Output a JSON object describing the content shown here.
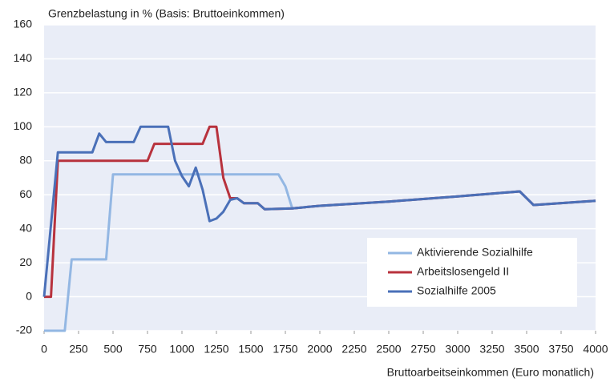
{
  "chart_data": {
    "type": "line",
    "title": "Grenzbelastung in % (Basis: Bruttoeinkommen)",
    "x_label": "Bruttoarbeitseinkommen (Euro monatlich)",
    "xlim": [
      0,
      4000
    ],
    "xticks": [
      0,
      250,
      500,
      750,
      1000,
      1250,
      1500,
      1750,
      2000,
      2250,
      2500,
      2750,
      3000,
      3250,
      3500,
      3750,
      4000
    ],
    "ylim": [
      -20,
      160
    ],
    "yticks": [
      -20,
      0,
      20,
      40,
      60,
      80,
      100,
      120,
      140,
      160
    ],
    "grid": true,
    "legend": "lower right",
    "series": [
      {
        "name": "Aktivierende Sozialhilfe",
        "color": "#93b7e3",
        "x": [
          0,
          150,
          200,
          450,
          500,
          1700,
          1750,
          1800,
          2000,
          2500,
          3000,
          3450,
          3550,
          4000
        ],
        "values": [
          -20,
          -20,
          22,
          22,
          72,
          72,
          65,
          52,
          53.5,
          56,
          59,
          62,
          54,
          56.5
        ]
      },
      {
        "name": "Arbeitslosengeld II",
        "color": "#b8323d",
        "x": [
          0,
          50,
          100,
          750,
          800,
          1150,
          1200,
          1250,
          1300,
          1350,
          1400,
          1450,
          1550,
          1600,
          1800,
          2000,
          2500,
          3000,
          3450,
          3550,
          4000
        ],
        "values": [
          0,
          0,
          80,
          80,
          90,
          90,
          100,
          100,
          70,
          58,
          58,
          55,
          55,
          51.5,
          52,
          53.5,
          56,
          59,
          62,
          54,
          56.5
        ]
      },
      {
        "name": "Sozialhilfe 2005",
        "color": "#4a70b8",
        "x": [
          0,
          100,
          350,
          400,
          450,
          650,
          700,
          900,
          950,
          1000,
          1050,
          1100,
          1150,
          1200,
          1250,
          1300,
          1350,
          1400,
          1450,
          1550,
          1600,
          1800,
          2000,
          2500,
          3000,
          3450,
          3550,
          4000
        ],
        "values": [
          0,
          85,
          85,
          96,
          91,
          91,
          100,
          100,
          80,
          71,
          65,
          76,
          63,
          44.5,
          46,
          50,
          57,
          58,
          55,
          55,
          51.5,
          52,
          53.5,
          56,
          59,
          62,
          54,
          56.5
        ]
      }
    ]
  }
}
